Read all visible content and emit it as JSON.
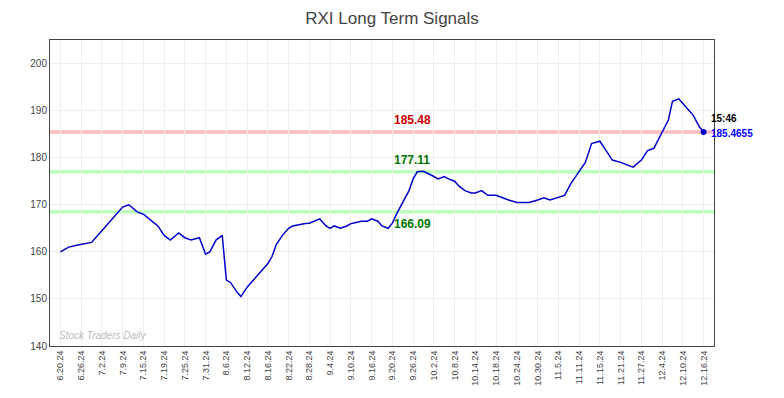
{
  "chart_data": {
    "type": "line",
    "title": "RXI Long Term Signals",
    "color": "#0000cc",
    "marker": "circle",
    "grid": true,
    "x": [
      0,
      0.4,
      0.9,
      1.5,
      2.0,
      2.5,
      3.0,
      3.3,
      3.7,
      4.0,
      4.3,
      4.7,
      5.0,
      5.3,
      5.7,
      6.0,
      6.3,
      6.7,
      7.0,
      7.2,
      7.5,
      7.8,
      8.0,
      8.2,
      8.5,
      8.7,
      9.0,
      9.2,
      9.5,
      9.8,
      10.0,
      10.2,
      10.4,
      10.7,
      11.0,
      11.2,
      11.5,
      11.8,
      12.0,
      12.2,
      12.5,
      12.8,
      13.0,
      13.2,
      13.5,
      13.8,
      14.0,
      14.2,
      14.5,
      14.8,
      15.0,
      15.3,
      15.5,
      15.8,
      16.0,
      16.2,
      16.5,
      16.8,
      17.0,
      17.2,
      17.5,
      17.8,
      18.0,
      18.2,
      18.5,
      18.7,
      19.0,
      19.2,
      19.5,
      19.8,
      20.0,
      20.3,
      20.6,
      21.0,
      21.3,
      21.6,
      22.0,
      22.3,
      22.6,
      23.0,
      23.3,
      23.6,
      24.0,
      24.3,
      24.6,
      25.0,
      25.3,
      25.6,
      26.0,
      26.3,
      26.6,
      27.0,
      27.3,
      27.6,
      28.0,
      28.3,
      28.6,
      29.0,
      29.3,
      29.5,
      29.8,
      30.0,
      30.2,
      30.5,
      30.8,
      31.0
    ],
    "values": [
      160.0,
      161.0,
      161.5,
      162.0,
      164.5,
      167.0,
      169.5,
      170.0,
      168.5,
      168.0,
      167.0,
      165.5,
      163.5,
      162.5,
      164.0,
      163.0,
      162.5,
      163.0,
      159.5,
      160.0,
      162.5,
      163.5,
      154.0,
      153.5,
      151.5,
      150.5,
      152.5,
      153.5,
      155.0,
      156.5,
      157.5,
      159.0,
      161.5,
      163.5,
      165.0,
      165.5,
      165.8,
      166.0,
      166.09,
      166.5,
      167.0,
      165.5,
      165.0,
      165.5,
      165.0,
      165.5,
      166.0,
      166.2,
      166.5,
      166.5,
      167.0,
      166.5,
      165.5,
      165.0,
      166.09,
      168.0,
      170.5,
      173.0,
      175.5,
      177.0,
      177.11,
      176.5,
      176.0,
      175.5,
      176.0,
      175.5,
      175.0,
      174.0,
      173.0,
      172.5,
      172.5,
      173.0,
      172.0,
      172.0,
      171.5,
      171.0,
      170.5,
      170.5,
      170.5,
      171.0,
      171.5,
      171.0,
      171.5,
      172.0,
      174.5,
      177.0,
      179.0,
      183.0,
      183.5,
      181.5,
      179.5,
      179.0,
      178.5,
      178.0,
      179.5,
      181.5,
      182.0,
      185.5,
      188.0,
      192.0,
      192.5,
      191.5,
      190.5,
      189.0,
      186.5,
      185.4655
    ],
    "xlim": [
      -0.5,
      31.5
    ],
    "xticks": [
      {
        "value": 0,
        "label": "6.20.24"
      },
      {
        "value": 1,
        "label": "6.26.24"
      },
      {
        "value": 2,
        "label": "7.2.24"
      },
      {
        "value": 3,
        "label": "7.9.24"
      },
      {
        "value": 4,
        "label": "7.15.24"
      },
      {
        "value": 5,
        "label": "7.19.24"
      },
      {
        "value": 6,
        "label": "7.25.24"
      },
      {
        "value": 7,
        "label": "7.31.24"
      },
      {
        "value": 8,
        "label": "8.6.24"
      },
      {
        "value": 9,
        "label": "8.12.24"
      },
      {
        "value": 10,
        "label": "8.16.24"
      },
      {
        "value": 11,
        "label": "8.22.24"
      },
      {
        "value": 12,
        "label": "8.28.24"
      },
      {
        "value": 13,
        "label": "9.4.24"
      },
      {
        "value": 14,
        "label": "9.10.24"
      },
      {
        "value": 15,
        "label": "9.16.24"
      },
      {
        "value": 16,
        "label": "9.20.24"
      },
      {
        "value": 17,
        "label": "9.26.24"
      },
      {
        "value": 18,
        "label": "10.2.24"
      },
      {
        "value": 19,
        "label": "10.8.24"
      },
      {
        "value": 20,
        "label": "10.14.24"
      },
      {
        "value": 21,
        "label": "10.18.24"
      },
      {
        "value": 22,
        "label": "10.24.24"
      },
      {
        "value": 23,
        "label": "10.30.24"
      },
      {
        "value": 24,
        "label": "11.5.24"
      },
      {
        "value": 25,
        "label": "11.11.24"
      },
      {
        "value": 26,
        "label": "11.15.24"
      },
      {
        "value": 27,
        "label": "11.21.24"
      },
      {
        "value": 28,
        "label": "11.27.24"
      },
      {
        "value": 29,
        "label": "12.4.24"
      },
      {
        "value": 30,
        "label": "12.10.24"
      },
      {
        "value": 31,
        "label": "12.16.24"
      }
    ],
    "ylim": [
      140,
      205
    ],
    "yticks": [
      140,
      150,
      160,
      170,
      180,
      190,
      200
    ],
    "hlines": [
      {
        "value": 185.48,
        "color": "#ffbbbb"
      },
      {
        "value": 177.0,
        "color": "#bbffbb"
      },
      {
        "value": 168.5,
        "color": "#bbffbb"
      }
    ],
    "annotations": [
      {
        "text": "185.48",
        "color": "#cc0000"
      },
      {
        "text": "177.11",
        "color": "#007700"
      },
      {
        "text": "166.09",
        "color": "#007700"
      }
    ],
    "point_labels": [
      {
        "text": "15:46",
        "color": "#000000"
      },
      {
        "text": "185.4655",
        "color": "#0000ff"
      }
    ],
    "watermark": {
      "text": "Stock Traders Daily",
      "color": "#bbbbbb"
    }
  }
}
